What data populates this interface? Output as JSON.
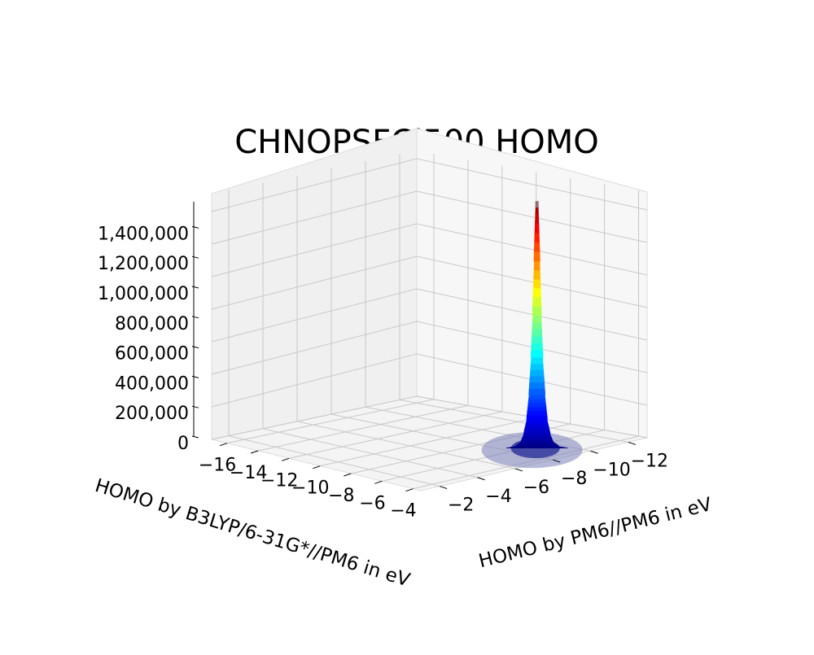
{
  "chart_data": {
    "type": "3d_histogram",
    "title": "CHNOPSFCl500 HOMO",
    "xlabel": "HOMO by B3LYP/6-31G*//PM6 in eV",
    "ylabel": "HOMO by PM6//PM6 in eV",
    "zlabel": "",
    "x_ticks": [
      "−16",
      "−14",
      "−12",
      "−10",
      "−8",
      "−6",
      "−4"
    ],
    "y_ticks": [
      "−2",
      "−4",
      "−6",
      "−8",
      "−10",
      "−12"
    ],
    "z_ticks": [
      "0",
      "200,000",
      "400,000",
      "600,000",
      "800,000",
      "1,000,000",
      "1,200,000",
      "1,400,000"
    ],
    "xlim": [
      -17,
      -3.5
    ],
    "ylim": [
      -1,
      -13
    ],
    "zlim": [
      0,
      1550000
    ],
    "colormap": "jet",
    "grid": true,
    "peak": {
      "x": -5.6,
      "y": -9.0,
      "count": 1500000
    },
    "profile": [
      {
        "dist": 0.0,
        "count": 1500000
      },
      {
        "dist": 0.1,
        "count": 1150000
      },
      {
        "dist": 0.2,
        "count": 820000
      },
      {
        "dist": 0.3,
        "count": 560000
      },
      {
        "dist": 0.45,
        "count": 330000
      },
      {
        "dist": 0.6,
        "count": 180000
      },
      {
        "dist": 0.8,
        "count": 90000
      },
      {
        "dist": 1.0,
        "count": 40000
      },
      {
        "dist": 1.4,
        "count": 12000
      },
      {
        "dist": 2.0,
        "count": 2000
      }
    ]
  }
}
